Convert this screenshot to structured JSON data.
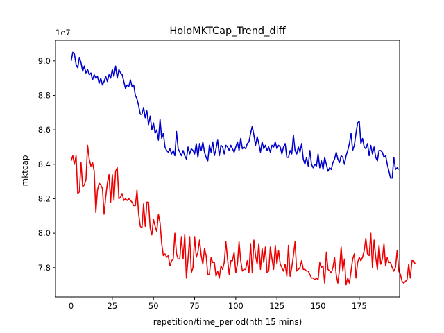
{
  "chart_data": {
    "type": "line",
    "title": "HoloMKTCap_Trend_diff",
    "xlabel": "repetition/time_period(nth 15 mins)",
    "ylabel": "mktcap",
    "y_offset_label": "1e7",
    "y_multiplier": 10000000,
    "xlim": [
      -9.5,
      199.5
    ],
    "ylim": [
      7.63,
      9.12
    ],
    "x_ticks": [
      0,
      25,
      50,
      75,
      100,
      125,
      150,
      175
    ],
    "y_ticks": [
      7.8,
      8.0,
      8.2,
      8.4,
      8.6,
      8.8,
      9.0
    ],
    "y_tick_labels": [
      "7.8",
      "8.0",
      "8.2",
      "8.4",
      "8.6",
      "8.8",
      "9.0"
    ],
    "grid": false,
    "series": [
      {
        "color": "#0000cc",
        "x_start": 0,
        "x_step": 1,
        "values": [
          9.0,
          9.05,
          9.04,
          8.98,
          8.96,
          9.02,
          8.99,
          8.94,
          8.97,
          8.93,
          8.95,
          8.92,
          8.93,
          8.89,
          8.92,
          8.9,
          8.91,
          8.87,
          8.9,
          8.86,
          8.88,
          8.91,
          8.88,
          8.92,
          8.9,
          8.95,
          8.91,
          8.97,
          8.9,
          8.95,
          8.93,
          8.92,
          8.88,
          8.84,
          8.86,
          8.85,
          8.89,
          8.85,
          8.86,
          8.8,
          8.78,
          8.74,
          8.69,
          8.69,
          8.73,
          8.67,
          8.71,
          8.63,
          8.68,
          8.6,
          8.64,
          8.58,
          8.6,
          8.54,
          8.66,
          8.55,
          8.58,
          8.5,
          8.48,
          8.47,
          8.49,
          8.46,
          8.48,
          8.45,
          8.59,
          8.49,
          8.47,
          8.45,
          8.48,
          8.45,
          8.43,
          8.5,
          8.46,
          8.49,
          8.48,
          8.46,
          8.52,
          8.44,
          8.52,
          8.48,
          8.53,
          8.47,
          8.44,
          8.42,
          8.51,
          8.47,
          8.53,
          8.45,
          8.49,
          8.54,
          8.45,
          8.51,
          8.5,
          8.46,
          8.51,
          8.5,
          8.48,
          8.51,
          8.49,
          8.47,
          8.5,
          8.53,
          8.48,
          8.55,
          8.49,
          8.5,
          8.49,
          8.52,
          8.53,
          8.58,
          8.62,
          8.57,
          8.51,
          8.56,
          8.52,
          8.47,
          8.53,
          8.49,
          8.51,
          8.48,
          8.5,
          8.47,
          8.51,
          8.5,
          8.53,
          8.49,
          8.51,
          8.5,
          8.46,
          8.5,
          8.52,
          8.44,
          8.44,
          8.48,
          8.46,
          8.57,
          8.48,
          8.46,
          8.5,
          8.47,
          8.52,
          8.43,
          8.4,
          8.44,
          8.39,
          8.48,
          8.4,
          8.38,
          8.4,
          8.39,
          8.46,
          8.38,
          8.42,
          8.37,
          8.44,
          8.4,
          8.36,
          8.38,
          8.37,
          8.41,
          8.43,
          8.47,
          8.43,
          8.41,
          8.45,
          8.44,
          8.4,
          8.45,
          8.48,
          8.52,
          8.58,
          8.48,
          8.51,
          8.58,
          8.64,
          8.65,
          8.52,
          8.55,
          8.5,
          8.49,
          8.52,
          8.45,
          8.51,
          8.46,
          8.5,
          8.44,
          8.42,
          8.48,
          8.48,
          8.47,
          8.44,
          8.45,
          8.4,
          8.36,
          8.32,
          8.32,
          8.44,
          8.37,
          8.38,
          8.37
        ]
      },
      {
        "color": "#ee0000",
        "x_start": 0,
        "x_step": 1,
        "values": [
          8.42,
          8.45,
          8.4,
          8.45,
          8.23,
          8.24,
          8.41,
          8.27,
          8.28,
          8.31,
          8.51,
          8.43,
          8.39,
          8.41,
          8.36,
          8.12,
          8.25,
          8.29,
          8.28,
          8.26,
          8.11,
          8.21,
          8.29,
          8.34,
          8.18,
          8.34,
          8.19,
          8.36,
          8.38,
          8.2,
          8.21,
          8.23,
          8.19,
          8.2,
          8.19,
          8.2,
          8.19,
          8.18,
          8.16,
          8.16,
          8.25,
          8.11,
          8.04,
          8.03,
          8.17,
          8.04,
          8.18,
          8.18,
          8.03,
          7.99,
          8.08,
          8.04,
          8.01,
          8.11,
          8.06,
          7.94,
          7.87,
          7.88,
          7.86,
          7.87,
          7.81,
          7.84,
          7.85,
          8.0,
          7.88,
          7.85,
          7.85,
          7.98,
          7.85,
          7.99,
          7.74,
          7.85,
          7.98,
          7.77,
          7.8,
          7.98,
          7.86,
          7.89,
          7.96,
          7.87,
          7.82,
          7.91,
          7.87,
          7.76,
          7.76,
          7.86,
          7.83,
          7.83,
          7.75,
          7.78,
          7.74,
          7.81,
          7.79,
          7.83,
          7.95,
          7.85,
          7.76,
          7.84,
          7.84,
          7.89,
          7.77,
          7.82,
          7.95,
          7.84,
          7.78,
          7.79,
          7.79,
          7.84,
          7.77,
          7.94,
          7.77,
          7.96,
          7.87,
          7.82,
          7.94,
          7.79,
          7.91,
          7.83,
          7.92,
          7.77,
          7.78,
          7.92,
          7.85,
          7.79,
          7.93,
          7.82,
          7.9,
          7.82,
          7.8,
          7.78,
          7.82,
          7.75,
          7.93,
          7.75,
          7.8,
          7.87,
          7.95,
          7.78,
          7.79,
          7.8,
          7.84,
          7.79,
          7.79,
          7.78,
          7.78,
          7.76,
          7.74,
          7.74,
          7.73,
          7.74,
          7.73,
          7.83,
          7.8,
          7.81,
          7.71,
          7.89,
          7.79,
          7.78,
          7.77,
          7.8,
          7.86,
          7.76,
          7.71,
          7.79,
          7.92,
          7.78,
          7.85,
          7.7,
          7.74,
          7.71,
          7.78,
          7.85,
          7.88,
          7.74,
          7.83,
          7.86,
          7.84,
          7.86,
          7.9,
          7.97,
          7.88,
          7.87,
          8.0,
          7.8,
          7.96,
          7.86,
          7.79,
          7.93,
          7.82,
          7.85,
          7.94,
          7.81,
          7.86,
          7.83,
          7.83,
          7.8,
          7.78,
          7.8,
          7.9,
          7.78,
          7.76,
          7.72,
          7.71,
          7.72,
          7.73,
          7.82,
          7.74,
          7.84,
          7.84,
          7.82
        ]
      }
    ]
  }
}
